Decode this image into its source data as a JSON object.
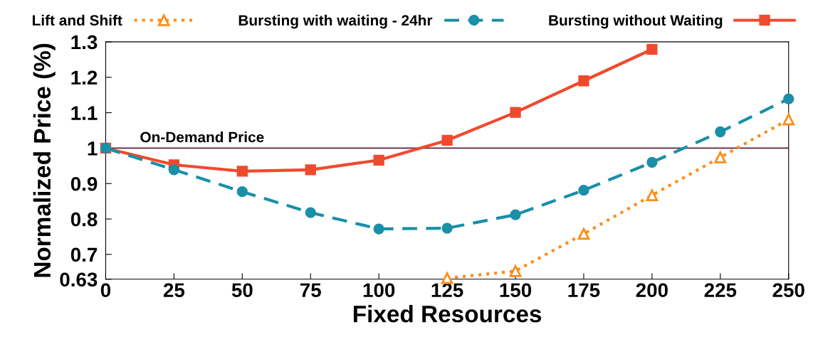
{
  "chart_data": {
    "type": "line",
    "xlabel": "Fixed Resources",
    "ylabel": "Normalized Price (%)",
    "xlim": [
      0,
      250
    ],
    "xticks": [
      0,
      25,
      50,
      75,
      100,
      125,
      150,
      175,
      200,
      225,
      250
    ],
    "ylim": [
      0.63,
      1.3
    ],
    "yticks": [
      0.63,
      0.7,
      0.8,
      0.9,
      1,
      1.1,
      1.2,
      1.3
    ],
    "grid": false,
    "legend": "top",
    "ref_lines": [
      {
        "axis": "y",
        "value": 1,
        "label": "On-Demand Price",
        "color": "#5e1e3c",
        "line_style": "solid"
      }
    ],
    "series": [
      {
        "name": "Lift and Shift",
        "color": "#ff8c1a",
        "marker": "triangle",
        "line_style": "dotted",
        "x": [
          125,
          150,
          175,
          200,
          225,
          250
        ],
        "values": [
          0.633,
          0.653,
          0.758,
          0.867,
          0.974,
          1.081
        ]
      },
      {
        "name": "Bursting with waiting - 24hr",
        "color": "#1a8fa8",
        "marker": "circle",
        "line_style": "dashed",
        "x": [
          0,
          25,
          50,
          75,
          100,
          125,
          150,
          175,
          200,
          225,
          250
        ],
        "values": [
          1.0,
          0.939,
          0.877,
          0.818,
          0.772,
          0.774,
          0.812,
          0.881,
          0.96,
          1.046,
          1.139
        ]
      },
      {
        "name": "Bursting without Waiting",
        "color": "#f04a2e",
        "marker": "square",
        "line_style": "solid",
        "x": [
          0,
          25,
          50,
          75,
          100,
          125,
          150,
          175,
          200
        ],
        "values": [
          1.0,
          0.953,
          0.935,
          0.939,
          0.966,
          1.022,
          1.101,
          1.19,
          1.279
        ]
      }
    ]
  }
}
